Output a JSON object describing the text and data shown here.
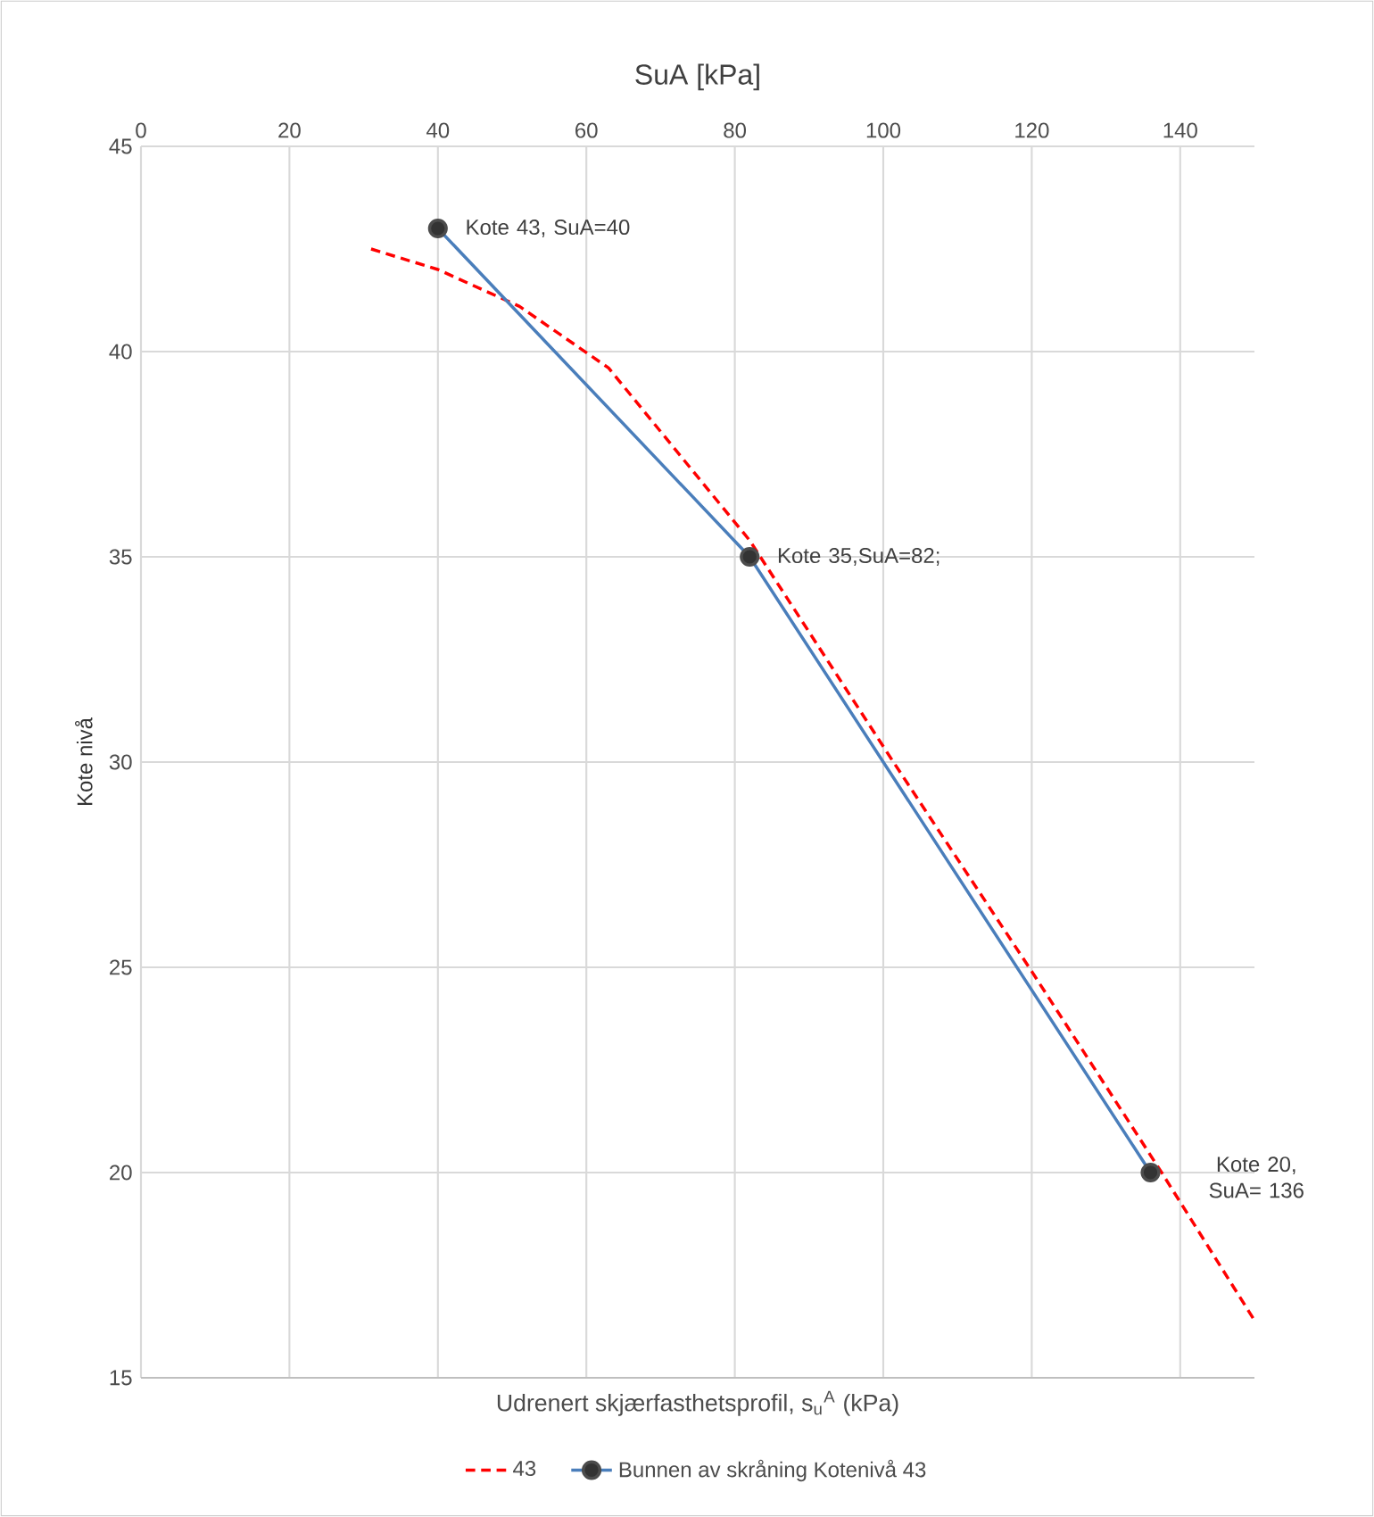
{
  "chart_data": {
    "type": "line",
    "title": "SuA [kPa]",
    "xlabel": "Udrenert skjærfasthetsprofil, s$_{u}$$^{A}$ (kPa)",
    "ylabel": "Kote nivå",
    "xlim": [
      0,
      150
    ],
    "xticks": [
      0,
      20,
      40,
      60,
      80,
      100,
      120,
      140
    ],
    "ylim": [
      15,
      45
    ],
    "yticks": [
      15,
      20,
      25,
      30,
      35,
      40,
      45
    ],
    "grid": true,
    "legend": "bottom",
    "series": [
      {
        "name": "43",
        "color": "#ff0000",
        "line_style": "dashed",
        "marker": "none",
        "x": [
          31,
          40,
          51,
          63,
          82,
          101,
          120,
          137.5,
          150
        ],
        "values": [
          42.5,
          42,
          41.1,
          39.6,
          35.4,
          30.1,
          24.9,
          20.0,
          16.4
        ]
      },
      {
        "name": "Bunnen av skråning Kotenivå 43",
        "color": "#4a7ebb",
        "line_style": "solid",
        "marker": "circle",
        "x": [
          40,
          82,
          136
        ],
        "values": [
          43,
          35,
          20
        ]
      }
    ],
    "annotations": [
      {
        "text": "Kote 43, SuA=40",
        "x": 40,
        "y": 43
      },
      {
        "text": "Kote 35,SuA=82;",
        "x": 82,
        "y": 35
      },
      {
        "text": "Kote 20, SuA= 136",
        "x": 136,
        "y": 20
      }
    ]
  }
}
